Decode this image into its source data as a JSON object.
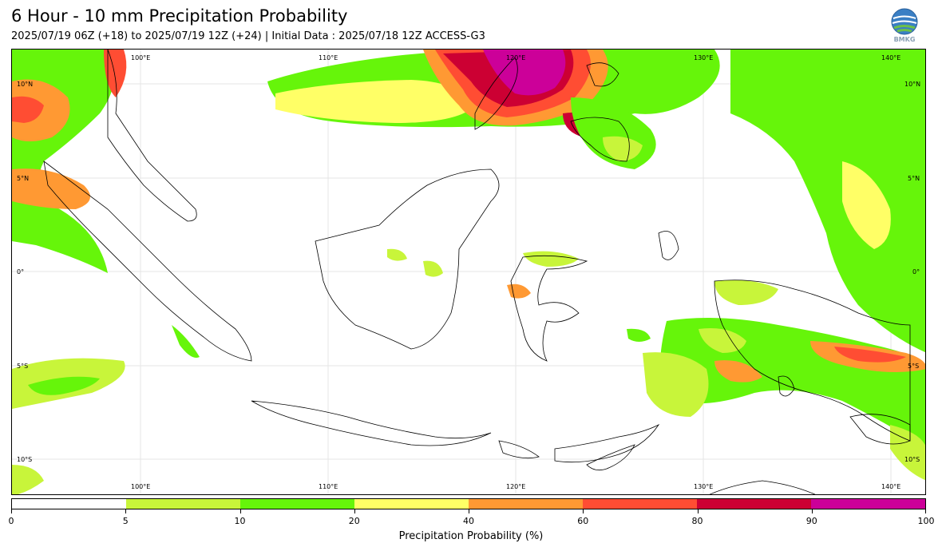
{
  "header": {
    "title": "6 Hour - 10 mm Precipitation Probability",
    "subtitle": "2025/07/19 06Z (+18) to 2025/07/19 12Z (+24) | Initial Data : 2025/07/18 12Z ACCESS-G3",
    "logo_text": "BMKG"
  },
  "map": {
    "lon_labels_top": [
      "100°E",
      "110°E",
      "120°E",
      "130°E",
      "140°E"
    ],
    "lon_labels_bottom": [
      "100°E",
      "110°E",
      "120°E",
      "130°E",
      "140°E"
    ],
    "lat_labels_left": [
      "10°N",
      "5°N",
      "0°",
      "5°S",
      "10°S"
    ],
    "lat_labels_right": [
      "10°N",
      "5°N",
      "0°",
      "5°S",
      "10°S"
    ]
  },
  "colorbar": {
    "colors": [
      "#ffffff",
      "#c8f53a",
      "#66f50a",
      "#ffff66",
      "#ff9933",
      "#ff4d33",
      "#cc0033",
      "#cc0099"
    ],
    "ticks": [
      "0",
      "5",
      "10",
      "20",
      "40",
      "60",
      "80",
      "90",
      "100"
    ],
    "label": "Precipitation Probability (%)"
  },
  "colors": {
    "c5": "#c8f53a",
    "c10": "#66f50a",
    "c20": "#ffff66",
    "c40": "#ff9933",
    "c60": "#ff4d33",
    "c80": "#cc0033",
    "c90": "#cc0099",
    "grid": "#e0e0e0",
    "coast": "#000000"
  }
}
